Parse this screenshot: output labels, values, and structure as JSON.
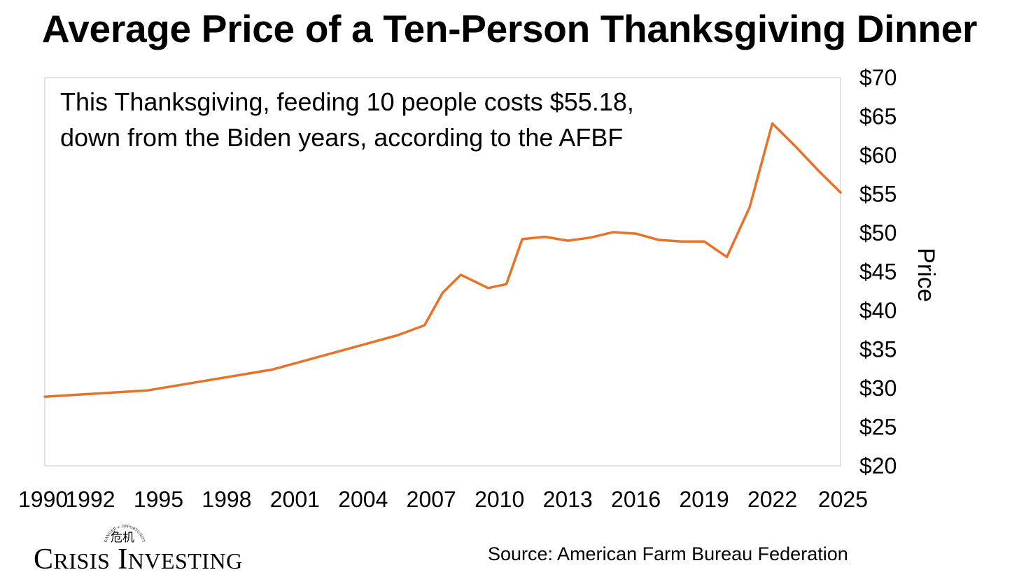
{
  "title": "Average Price of a Ten-Person Thanksgiving Dinner",
  "annotation": {
    "line1": "This Thanksgiving, feeding 10 people costs $55.18,",
    "line2": "down from the Biden years, according to the AFBF"
  },
  "source": "Source: American Farm Bureau Federation",
  "logo": {
    "name_first_initial": "C",
    "name_first_rest": "RISIS",
    "name_second_initial": "I",
    "name_second_rest": "NVESTING",
    "arc_text": "DANGER + OPPORTUNITY",
    "glyph": "危机"
  },
  "colors": {
    "line": "#E8722A",
    "plot_border": "#D9D9D9"
  },
  "chart_data": {
    "type": "line",
    "title": "Average Price of a Ten-Person Thanksgiving Dinner",
    "xlabel": "",
    "ylabel": "Price",
    "ylim": [
      20,
      70
    ],
    "ytick_values": [
      20,
      25,
      30,
      35,
      40,
      45,
      50,
      55,
      60,
      65,
      70
    ],
    "ytick_labels": [
      "$20",
      "$25",
      "$30",
      "$35",
      "$40",
      "$45",
      "$50",
      "$55",
      "$60",
      "$65",
      "$70"
    ],
    "xlim": [
      1990,
      2025
    ],
    "xtick_values": [
      1990,
      1992,
      1995,
      1998,
      2001,
      2004,
      2007,
      2010,
      2013,
      2016,
      2019,
      2022,
      2025
    ],
    "xtick_labels": [
      "1990",
      "1992",
      "1995",
      "1998",
      "2001",
      "2004",
      "2007",
      "2010",
      "2013",
      "2016",
      "2019",
      "2022",
      "2025"
    ],
    "grid": false,
    "legend": "none",
    "series": [
      {
        "name": "Price",
        "x": [
          1990,
          1994.5,
          2000,
          2005.5,
          2006.7,
          2007.5,
          2008.3,
          2009.5,
          2010.3,
          2011,
          2012,
          2013,
          2014,
          2015,
          2016,
          2017,
          2018,
          2019,
          2020,
          2021,
          2022,
          2023,
          2024,
          2025
        ],
        "values": [
          28.9,
          29.7,
          32.4,
          36.8,
          38.1,
          42.3,
          44.6,
          42.9,
          43.4,
          49.2,
          49.5,
          49.0,
          49.4,
          50.1,
          49.9,
          49.1,
          48.9,
          48.9,
          46.9,
          53.3,
          64.1,
          61.2,
          58.1,
          55.2
        ]
      }
    ]
  }
}
